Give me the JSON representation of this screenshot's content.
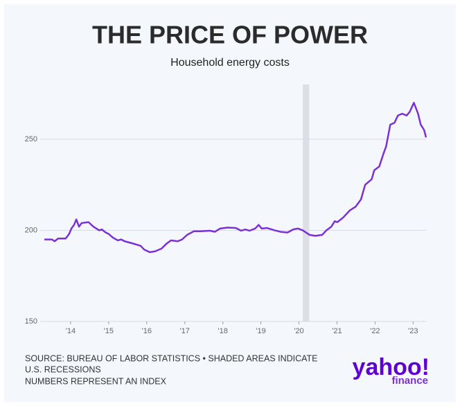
{
  "chart_data": {
    "type": "line",
    "title": "THE PRICE OF POWER",
    "subtitle": "Household energy costs",
    "x": [
      2013.31,
      2013.51,
      2013.58,
      2013.67,
      2013.87,
      2013.96,
      2014.02,
      2014.09,
      2014.15,
      2014.22,
      2014.29,
      2014.47,
      2014.6,
      2014.75,
      2014.82,
      2014.91,
      2015.0,
      2015.11,
      2015.24,
      2015.33,
      2015.42,
      2015.6,
      2015.84,
      2015.93,
      2016.08,
      2016.22,
      2016.39,
      2016.51,
      2016.64,
      2016.81,
      2016.93,
      2017.06,
      2017.24,
      2017.42,
      2017.66,
      2017.79,
      2017.93,
      2018.12,
      2018.34,
      2018.48,
      2018.59,
      2018.7,
      2018.85,
      2018.94,
      2019.02,
      2019.16,
      2019.36,
      2019.52,
      2019.7,
      2019.85,
      2019.97,
      2020.1,
      2020.28,
      2020.43,
      2020.61,
      2020.72,
      2020.85,
      2020.94,
      2021.01,
      2021.16,
      2021.34,
      2021.49,
      2021.63,
      2021.74,
      2021.91,
      2021.98,
      2022.11,
      2022.22,
      2022.29,
      2022.4,
      2022.51,
      2022.6,
      2022.71,
      2022.83,
      2022.91,
      2023.02,
      2023.13,
      2023.2,
      2023.29,
      2023.34
    ],
    "values": [
      195,
      195,
      194,
      195.5,
      195.5,
      198,
      201,
      203,
      206,
      202,
      204,
      204.5,
      202,
      200,
      200.5,
      199,
      198,
      196,
      194.5,
      195,
      194,
      193,
      191.5,
      189.5,
      188,
      188.5,
      190,
      192.5,
      194.5,
      194,
      195,
      197.5,
      199.5,
      199.5,
      199.8,
      199.2,
      201,
      201.5,
      201.3,
      199.8,
      200.5,
      199.8,
      201,
      203,
      201,
      201.3,
      200,
      199.2,
      198.8,
      200.5,
      201,
      200,
      197.5,
      197,
      197.5,
      200,
      202,
      205,
      204.5,
      207,
      211,
      213,
      217,
      225,
      228,
      233,
      235,
      242,
      246,
      258,
      259,
      263,
      264,
      263,
      265,
      270,
      264,
      258,
      255,
      251
    ],
    "color": "#7b2fd6",
    "recessions": [
      [
        2020.1,
        2020.27
      ]
    ],
    "xlim": [
      2013.2,
      2023.34
    ],
    "ylim": [
      150,
      280
    ],
    "xticks": [
      {
        "value": 2014,
        "label": "'14"
      },
      {
        "value": 2015,
        "label": "'15"
      },
      {
        "value": 2016,
        "label": "'16"
      },
      {
        "value": 2017,
        "label": "'17"
      },
      {
        "value": 2018,
        "label": "'18"
      },
      {
        "value": 2019,
        "label": "'19"
      },
      {
        "value": 2020,
        "label": "'20"
      },
      {
        "value": 2021,
        "label": "'21"
      },
      {
        "value": 2022,
        "label": "'22"
      },
      {
        "value": 2023,
        "label": "'23"
      }
    ],
    "yticks": [
      150,
      200,
      250
    ],
    "grid": true,
    "notes": [
      "SOURCE: BUREAU OF LABOR STATISTICS • SHADED AREAS INDICATE",
      "U.S. RECESSIONS",
      "NUMBERS REPRESENT AN INDEX"
    ],
    "branding": [
      "yahoo!",
      "finance"
    ]
  }
}
